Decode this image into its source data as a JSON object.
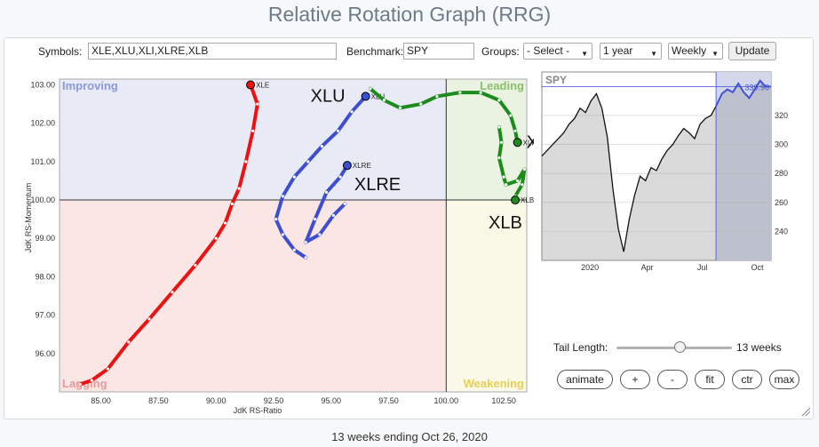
{
  "title": "Relative Rotation Graph (RRG)",
  "controls": {
    "symbols_label": "Symbols:",
    "symbols_value": "XLE,XLU,XLI,XLRE,XLB",
    "benchmark_label": "Benchmark:",
    "benchmark_value": "SPY",
    "groups_label": "Groups:",
    "groups_value": "- Select -",
    "period_value": "1 year",
    "frequency_value": "Weekly",
    "update_label": "Update"
  },
  "rrg": {
    "quadrants": {
      "improving": "Improving",
      "leading": "Leading",
      "lagging": "Lagging",
      "weakening": "Weakening"
    },
    "colors": {
      "improving": "#e8eaf6",
      "leading": "#eaf3e2",
      "lagging": "#fbe6e6",
      "weakening": "#faf8e6",
      "improving_text": "#8c9ad8",
      "leading_text": "#8bbf6a",
      "lagging_text": "#e59a9a",
      "weakening_text": "#e8cf55"
    },
    "xlabel": "JdK RS-Ratio",
    "ylabel": "JdK RS-Momentum",
    "x_ticks": [
      "85.00",
      "87.50",
      "90.00",
      "92.50",
      "95.00",
      "97.50",
      "100.00",
      "102.50"
    ],
    "y_ticks": [
      "103.00",
      "102.00",
      "101.00",
      "100.00",
      "99.00",
      "98.00",
      "97.00",
      "96.00"
    ],
    "tails": [
      {
        "symbol": "XLE",
        "color": "#ee1111",
        "points": [
          [
            84.1,
            95.2
          ],
          [
            84.6,
            95.3
          ],
          [
            85.3,
            95.6
          ],
          [
            86.2,
            96.3
          ],
          [
            87.1,
            96.9
          ],
          [
            88.1,
            97.6
          ],
          [
            89.1,
            98.3
          ],
          [
            90.0,
            99.0
          ],
          [
            90.4,
            99.4
          ],
          [
            90.7,
            99.9
          ],
          [
            91.0,
            100.3
          ],
          [
            91.3,
            101.0
          ],
          [
            91.6,
            101.8
          ],
          [
            91.8,
            102.5
          ],
          [
            91.5,
            103.0
          ]
        ],
        "label_small": "XLE",
        "label_big": "XLE"
      },
      {
        "symbol": "XLU",
        "color": "#3d4fd0",
        "points": [
          [
            93.9,
            98.5
          ],
          [
            93.4,
            98.7
          ],
          [
            92.9,
            99.1
          ],
          [
            92.6,
            99.5
          ],
          [
            92.9,
            100.1
          ],
          [
            93.4,
            100.6
          ],
          [
            94.0,
            101.0
          ],
          [
            94.6,
            101.4
          ],
          [
            95.3,
            101.8
          ],
          [
            95.9,
            102.3
          ],
          [
            96.5,
            102.7
          ]
        ],
        "label_small": "XLU",
        "label_big": "XLU"
      },
      {
        "symbol": "XLRE",
        "color": "#3d4fd0",
        "points": [
          [
            95.6,
            99.9
          ],
          [
            95.1,
            99.6
          ],
          [
            94.5,
            99.1
          ],
          [
            93.9,
            98.9
          ],
          [
            94.3,
            99.5
          ],
          [
            94.8,
            100.2
          ],
          [
            95.4,
            100.6
          ],
          [
            95.7,
            100.9
          ]
        ],
        "label_small": "XLRE",
        "label_big": "XLRE"
      },
      {
        "symbol": "XLI",
        "color": "#1b8c1b",
        "points": [
          [
            96.7,
            102.9
          ],
          [
            97.3,
            102.6
          ],
          [
            98.0,
            102.4
          ],
          [
            98.9,
            102.5
          ],
          [
            99.6,
            102.7
          ],
          [
            100.6,
            102.8
          ],
          [
            101.5,
            102.8
          ],
          [
            102.3,
            102.6
          ],
          [
            102.8,
            102.2
          ],
          [
            103.0,
            101.8
          ],
          [
            103.1,
            101.5
          ]
        ],
        "label_small": "XLI",
        "label_big": "XLI"
      },
      {
        "symbol": "XLB",
        "color": "#1b8c1b",
        "points": [
          [
            102.3,
            101.9
          ],
          [
            102.4,
            101.5
          ],
          [
            102.3,
            101.1
          ],
          [
            102.5,
            100.6
          ],
          [
            102.6,
            100.4
          ],
          [
            103.1,
            100.5
          ],
          [
            103.4,
            100.8
          ],
          [
            103.3,
            100.4
          ],
          [
            103.0,
            100.1
          ],
          [
            103.0,
            100.0
          ]
        ],
        "label_small": "XLB",
        "label_big": "XLB"
      }
    ]
  },
  "mini_chart": {
    "label": "SPY",
    "value": "339.96",
    "y_ticks": [
      "320",
      "300",
      "280",
      "260",
      "240"
    ],
    "x_ticks": [
      "2020",
      "Apr",
      "Jul",
      "Oct"
    ]
  },
  "tail_length": {
    "label": "Tail Length:",
    "value_label": "13 weeks",
    "fraction": 0.55
  },
  "buttons": {
    "animate": "animate",
    "plus": "+",
    "minus": "-",
    "fit": "fit",
    "ctr": "ctr",
    "max": "max"
  },
  "footer": "13 weeks ending Oct 26, 2020"
}
